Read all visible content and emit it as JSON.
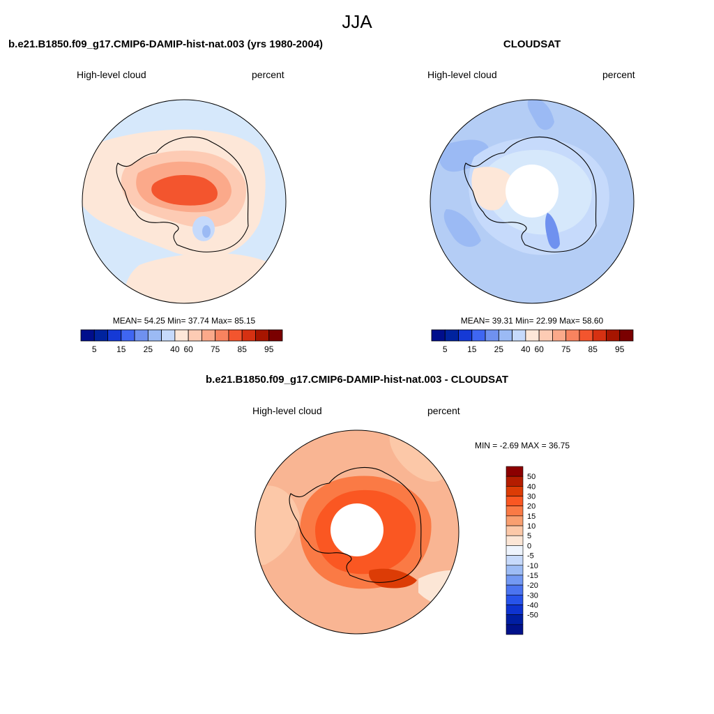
{
  "figure": {
    "title": "JJA"
  },
  "panels": [
    {
      "id": "model",
      "header": "b.e21.B1850.f09_g17.CMIP6-DAMIP-hist-nat.003 (yrs 1980-2004)",
      "left_label": "High-level cloud",
      "right_label": "percent",
      "stats": {
        "text": "MEAN=  54.25  Min=  37.74  Max=  85.15",
        "mean": 54.25,
        "min": 37.74,
        "max": 85.15
      },
      "background_color": "#d6e8fb",
      "hole": false
    },
    {
      "id": "obs",
      "header": "CLOUDSAT",
      "left_label": "High-level cloud",
      "right_label": "percent",
      "stats": {
        "text": "MEAN=  39.31  Min=  22.99  Max=  58.60",
        "mean": 39.31,
        "min": 22.99,
        "max": 58.6
      },
      "background_color": "#b4cdf5",
      "hole": true
    },
    {
      "id": "diff",
      "header": "b.e21.B1850.f09_g17.CMIP6-DAMIP-hist-nat.003 - CLOUDSAT",
      "left_label": "High-level cloud",
      "right_label": "percent",
      "stats": {
        "text": "MIN =  -2.69 MAX =  36.75",
        "min": -2.69,
        "max": 36.75
      },
      "background_color": "#f9b593",
      "hole": true
    }
  ],
  "colorbar_absolute": {
    "orientation": "horizontal",
    "colors": [
      "#000e8c",
      "#00239e",
      "#1539d5",
      "#3f66f2",
      "#6f91ef",
      "#9bbaf4",
      "#c6dafb",
      "#fde7d8",
      "#fdcbb4",
      "#fba98a",
      "#f8835f",
      "#f3552e",
      "#d63112",
      "#a61500",
      "#7a0000"
    ],
    "tick_labels": [
      "5",
      "15",
      "25",
      "40",
      "60",
      "75",
      "85",
      "95"
    ]
  },
  "colorbar_difference": {
    "orientation": "vertical",
    "colors_top_to_bottom": [
      "#8c0000",
      "#b41d00",
      "#dc3c06",
      "#fa5722",
      "#fa7a45",
      "#f99f70",
      "#fcc8a8",
      "#fce6d6",
      "#eef4fd",
      "#c7dafb",
      "#9dbcf5",
      "#7399f3",
      "#4b74f0",
      "#2753ea",
      "#0e33d0",
      "#001ea2",
      "#00118a"
    ],
    "tick_labels_top_to_bottom": [
      "50",
      "40",
      "30",
      "20",
      "15",
      "10",
      "5",
      "0",
      "-5",
      "-10",
      "-15",
      "-20",
      "-30",
      "-40",
      "-50"
    ]
  }
}
